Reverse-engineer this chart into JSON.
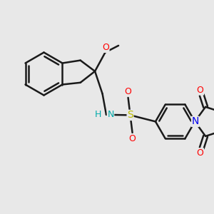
{
  "background_color": "#e8e8e8",
  "bond_color": "#1a1a1a",
  "bond_width": 1.8,
  "atom_colors": {
    "O": "#ff0000",
    "N_amine": "#00aaaa",
    "N_succ": "#0000ee",
    "S": "#bbbb00",
    "C": "#1a1a1a"
  },
  "fig_size": [
    3.0,
    3.0
  ],
  "dpi": 100,
  "xlim": [
    0.0,
    10.0
  ],
  "ylim": [
    0.0,
    10.0
  ]
}
